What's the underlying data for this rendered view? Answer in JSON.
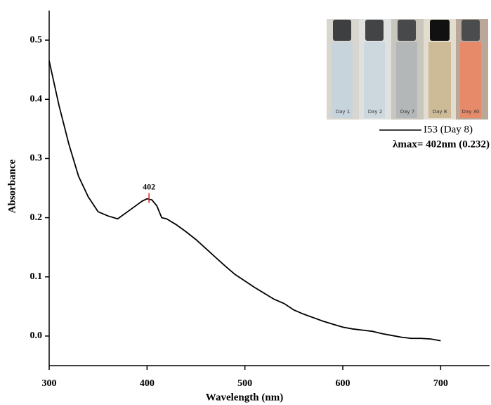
{
  "chart_data": {
    "type": "line",
    "x_label": "Wavelength (nm)",
    "y_label": "Absorbance",
    "x": [
      300,
      310,
      320,
      330,
      340,
      350,
      360,
      370,
      380,
      390,
      395,
      400,
      405,
      410,
      415,
      420,
      430,
      440,
      450,
      460,
      470,
      480,
      490,
      500,
      510,
      520,
      530,
      540,
      550,
      560,
      570,
      580,
      590,
      600,
      610,
      620,
      630,
      640,
      650,
      660,
      670,
      680,
      690,
      700
    ],
    "series": [
      {
        "name": "I53 (Day 8)",
        "color": "#000000",
        "values": [
          0.465,
          0.39,
          0.325,
          0.27,
          0.235,
          0.21,
          0.203,
          0.198,
          0.21,
          0.222,
          0.228,
          0.232,
          0.23,
          0.22,
          0.2,
          0.198,
          0.188,
          0.176,
          0.163,
          0.148,
          0.133,
          0.118,
          0.104,
          0.093,
          0.082,
          0.072,
          0.062,
          0.055,
          0.044,
          0.037,
          0.031,
          0.025,
          0.02,
          0.015,
          0.012,
          0.01,
          0.008,
          0.004,
          0.001,
          -0.002,
          -0.004,
          -0.004,
          -0.005,
          -0.008
        ]
      }
    ],
    "xlim": [
      300,
      750
    ],
    "xticks": [
      300,
      400,
      500,
      600,
      700
    ],
    "ylim": [
      -0.05,
      0.55
    ],
    "yticks": [
      {
        "value": 0,
        "label": "0.0"
      },
      0.1,
      0.2,
      0.3,
      0.4,
      0.5
    ],
    "annotations": [
      {
        "text": "402",
        "x": 402,
        "y": 0.232,
        "color": "#e02020"
      }
    ],
    "note": "λmax= 402nm (0.232)",
    "inset_labels": [
      "Day 1",
      "Day 2",
      "Day 7",
      "Day 8",
      "Day 30"
    ]
  }
}
